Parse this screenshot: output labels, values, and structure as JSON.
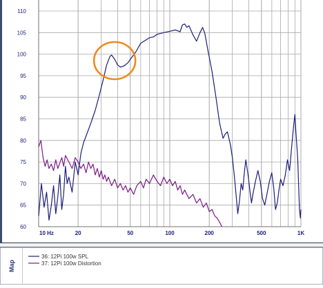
{
  "chart_data": {
    "type": "line",
    "x_scale": "log",
    "xlim": [
      10,
      1000
    ],
    "ylim": [
      60,
      110
    ],
    "grid": true,
    "legend_position": "bottom",
    "side_tab": "Map",
    "x_tick_labels": [
      "10 Hz",
      "20",
      "50",
      "100",
      "200",
      "500",
      "1K"
    ],
    "x_tick_values": [
      10,
      20,
      50,
      100,
      200,
      500,
      1000
    ],
    "y_ticks": [
      60,
      65,
      70,
      75,
      80,
      85,
      90,
      95,
      100,
      105,
      110
    ],
    "annotation": {
      "shape": "circle",
      "color": "#f08a1c",
      "center": [
        38,
        98.5
      ]
    },
    "colors": {
      "spl": "#1c1c7a",
      "distortion": "#7a1a86",
      "grid": "#a8a8a8",
      "panel_border": "#3c4a6e"
    },
    "series": [
      {
        "name": "36: 12Pi 100w SPL",
        "color": "#1c1c7a",
        "points": [
          [
            10,
            62.5
          ],
          [
            10.5,
            70
          ],
          [
            11,
            64.5
          ],
          [
            11.5,
            68
          ],
          [
            12,
            61.5
          ],
          [
            12.5,
            65
          ],
          [
            13,
            69.5
          ],
          [
            13.5,
            63
          ],
          [
            14,
            67
          ],
          [
            14.5,
            72
          ],
          [
            15,
            64
          ],
          [
            15.5,
            67.5
          ],
          [
            16,
            74
          ],
          [
            16.5,
            70
          ],
          [
            17,
            71.5
          ],
          [
            18,
            68
          ],
          [
            19,
            75
          ],
          [
            20,
            72
          ],
          [
            21,
            77
          ],
          [
            22,
            79.5
          ],
          [
            23,
            81
          ],
          [
            25,
            84
          ],
          [
            27,
            87
          ],
          [
            29,
            90.5
          ],
          [
            31,
            94
          ],
          [
            33,
            97.5
          ],
          [
            35,
            99.5
          ],
          [
            36,
            99.8
          ],
          [
            38,
            98.8
          ],
          [
            40,
            97.5
          ],
          [
            42,
            97.0
          ],
          [
            45,
            97.3
          ],
          [
            48,
            98.0
          ],
          [
            50,
            98.8
          ],
          [
            55,
            100.5
          ],
          [
            60,
            102.5
          ],
          [
            65,
            103.2
          ],
          [
            70,
            103.8
          ],
          [
            75,
            104.0
          ],
          [
            80,
            104.6
          ],
          [
            90,
            105.0
          ],
          [
            100,
            105.3
          ],
          [
            110,
            105.6
          ],
          [
            120,
            105.2
          ],
          [
            125,
            106.8
          ],
          [
            130,
            107.0
          ],
          [
            135,
            106.2
          ],
          [
            140,
            106.6
          ],
          [
            150,
            104.5
          ],
          [
            160,
            103.0
          ],
          [
            170,
            105.0
          ],
          [
            178,
            106.2
          ],
          [
            185,
            104.8
          ],
          [
            195,
            101.0
          ],
          [
            210,
            96.0
          ],
          [
            225,
            90.0
          ],
          [
            240,
            84.0
          ],
          [
            255,
            80.5
          ],
          [
            265,
            81.5
          ],
          [
            275,
            82.0
          ],
          [
            290,
            79.0
          ],
          [
            300,
            76.0
          ],
          [
            310,
            72.0
          ],
          [
            320,
            67.5
          ],
          [
            330,
            63.0
          ],
          [
            340,
            66.0
          ],
          [
            350,
            70.0
          ],
          [
            360,
            68.5
          ],
          [
            370,
            72.5
          ],
          [
            380,
            75.5
          ],
          [
            395,
            72.0
          ],
          [
            410,
            68.0
          ],
          [
            420,
            65.5
          ],
          [
            430,
            67.5
          ],
          [
            450,
            70.5
          ],
          [
            470,
            73.0
          ],
          [
            490,
            70.5
          ],
          [
            510,
            66.5
          ],
          [
            530,
            65.0
          ],
          [
            550,
            67.5
          ],
          [
            575,
            70.5
          ],
          [
            600,
            72.5
          ],
          [
            620,
            69.0
          ],
          [
            640,
            64.0
          ],
          [
            660,
            65.5
          ],
          [
            680,
            68.5
          ],
          [
            700,
            71.0
          ],
          [
            730,
            69.5
          ],
          [
            760,
            72.0
          ],
          [
            790,
            75.5
          ],
          [
            820,
            73.0
          ],
          [
            850,
            78.5
          ],
          [
            880,
            83.5
          ],
          [
            900,
            86.0
          ],
          [
            915,
            82.0
          ],
          [
            930,
            79.0
          ],
          [
            945,
            76.0
          ],
          [
            960,
            70.0
          ],
          [
            975,
            64.0
          ],
          [
            990,
            62.0
          ],
          [
            1000,
            64.0
          ]
        ]
      },
      {
        "name": "37: 12Pi 100w Distortion",
        "color": "#7a1a86",
        "points": [
          [
            10,
            78.5
          ],
          [
            10.4,
            80
          ],
          [
            10.8,
            76
          ],
          [
            11.2,
            74
          ],
          [
            11.6,
            75.5
          ],
          [
            12,
            73.5
          ],
          [
            12.5,
            74.5
          ],
          [
            13,
            73
          ],
          [
            13.5,
            75.5
          ],
          [
            14,
            73.5
          ],
          [
            15,
            76
          ],
          [
            15.5,
            74
          ],
          [
            16,
            76.5
          ],
          [
            17,
            75
          ],
          [
            18,
            73.5
          ],
          [
            19,
            76
          ],
          [
            20,
            75
          ],
          [
            21,
            73.5
          ],
          [
            22,
            74.5
          ],
          [
            23,
            72.5
          ],
          [
            24,
            75
          ],
          [
            25,
            73.5
          ],
          [
            26,
            74.5
          ],
          [
            27,
            72
          ],
          [
            28,
            73.5
          ],
          [
            29,
            71.5
          ],
          [
            30,
            73
          ],
          [
            31,
            71
          ],
          [
            32,
            72
          ],
          [
            33,
            70.5
          ],
          [
            34,
            71.5
          ],
          [
            36,
            69.5
          ],
          [
            38,
            71
          ],
          [
            40,
            69
          ],
          [
            42,
            70
          ],
          [
            44,
            68.5
          ],
          [
            46,
            69.5
          ],
          [
            48,
            68
          ],
          [
            50,
            69
          ],
          [
            53,
            67.5
          ],
          [
            56,
            69.5
          ],
          [
            60,
            70.5
          ],
          [
            63,
            69
          ],
          [
            66,
            71
          ],
          [
            70,
            70
          ],
          [
            75,
            72
          ],
          [
            80,
            70.5
          ],
          [
            85,
            69.5
          ],
          [
            90,
            71.5
          ],
          [
            95,
            70
          ],
          [
            100,
            71
          ],
          [
            105,
            69.5
          ],
          [
            110,
            70.5
          ],
          [
            115,
            68.5
          ],
          [
            120,
            69.5
          ],
          [
            125,
            67.5
          ],
          [
            130,
            68.5
          ],
          [
            140,
            66.5
          ],
          [
            150,
            67.5
          ],
          [
            160,
            65.5
          ],
          [
            170,
            66.5
          ],
          [
            180,
            64.5
          ],
          [
            190,
            65.5
          ],
          [
            200,
            63.5
          ],
          [
            210,
            64
          ],
          [
            220,
            62.5
          ],
          [
            230,
            62
          ],
          [
            240,
            61
          ],
          [
            250,
            60
          ]
        ]
      }
    ]
  }
}
